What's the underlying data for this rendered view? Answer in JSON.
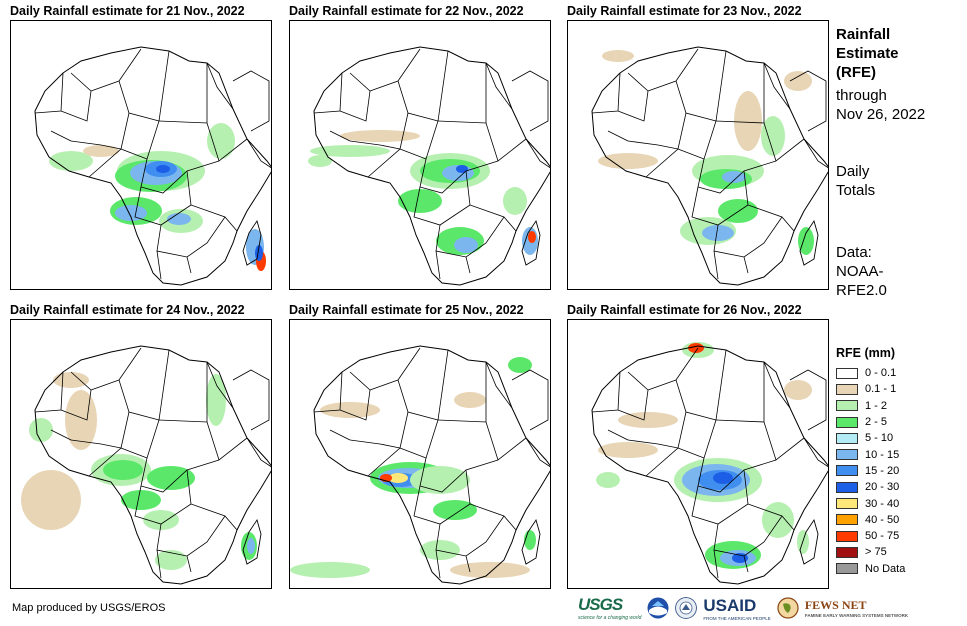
{
  "panels": [
    {
      "title": "Daily Rainfall estimate for 21 Nov., 2022"
    },
    {
      "title": "Daily Rainfall estimate for 22 Nov., 2022"
    },
    {
      "title": "Daily Rainfall estimate for 23 Nov., 2022"
    },
    {
      "title": "Daily Rainfall estimate for 24 Nov., 2022"
    },
    {
      "title": "Daily Rainfall estimate for 25 Nov., 2022"
    },
    {
      "title": "Daily Rainfall estimate for 26 Nov., 2022"
    }
  ],
  "info": {
    "heading_1": "Rainfall",
    "heading_2": "Estimate",
    "heading_3": "(RFE)",
    "through_1": "through",
    "through_2": "Nov 26, 2022",
    "totals_1": "Daily",
    "totals_2": "Totals",
    "source_1": "Data:",
    "source_2": "NOAA-",
    "source_3": "RFE2.0"
  },
  "legend": {
    "title": "RFE (mm)",
    "items": [
      {
        "label": "0 - 0.1",
        "color": "#ffffff"
      },
      {
        "label": "0.1 - 1",
        "color": "#e8d5b5"
      },
      {
        "label": "1 - 2",
        "color": "#b6f0b0"
      },
      {
        "label": "2 - 5",
        "color": "#5be86a"
      },
      {
        "label": "5 - 10",
        "color": "#b3ecf5"
      },
      {
        "label": "10 - 15",
        "color": "#7bb6ee"
      },
      {
        "label": "15 - 20",
        "color": "#3f8ef0"
      },
      {
        "label": "20 - 30",
        "color": "#1c5fe6"
      },
      {
        "label": "30 - 40",
        "color": "#ffe87a"
      },
      {
        "label": "40 - 50",
        "color": "#ffa200"
      },
      {
        "label": "50 - 75",
        "color": "#ff3b00"
      },
      {
        "label": "> 75",
        "color": "#a01010"
      },
      {
        "label": "No Data",
        "color": "#999999"
      }
    ]
  },
  "credit": "Map produced by USGS/EROS",
  "logos": {
    "usgs": "USGS",
    "usgs_tag": "science for a changing world",
    "usaid": "USAID",
    "usaid_tag": "FROM THE AMERICAN PEOPLE",
    "fews": "FEWS NET",
    "fews_tag": "FAMINE EARLY WARNING SYSTEMS NETWORK"
  }
}
